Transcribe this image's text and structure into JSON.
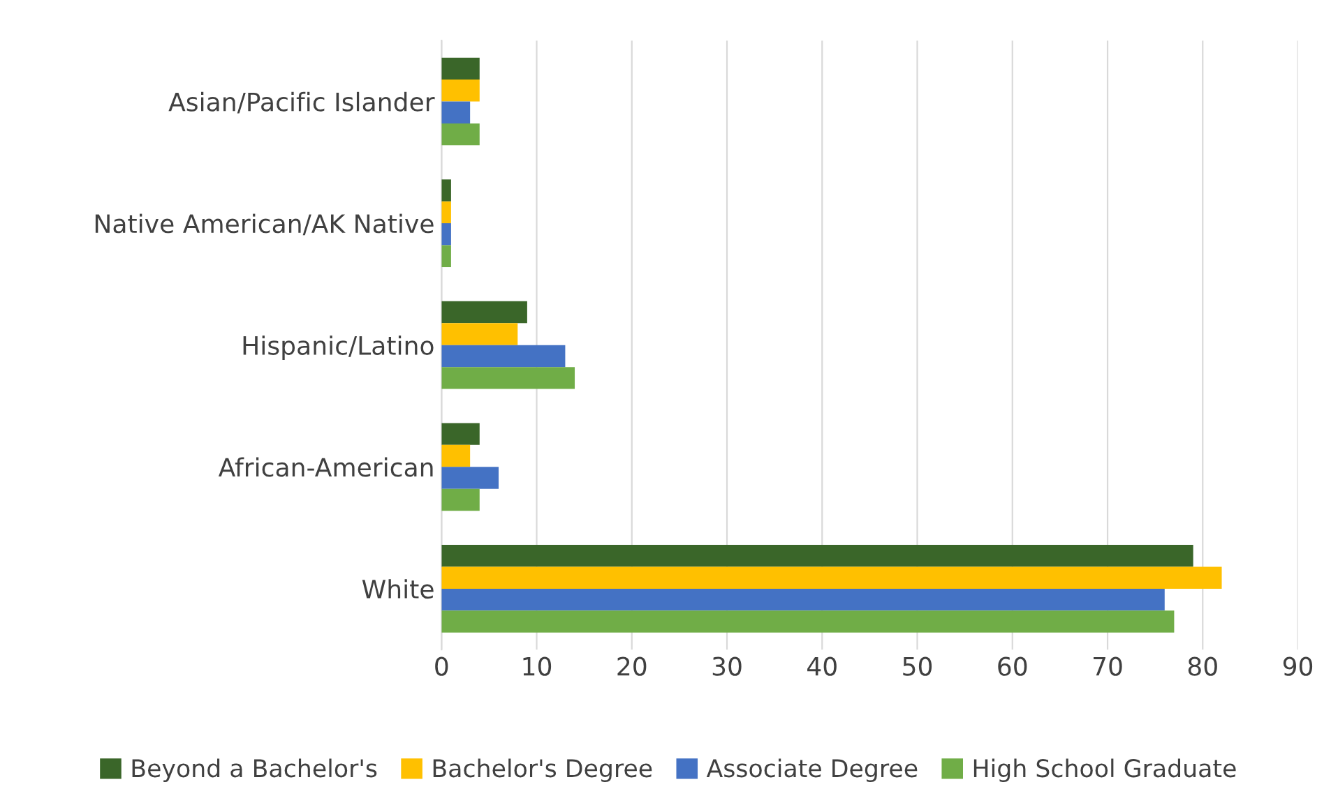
{
  "chart_data": {
    "type": "bar",
    "orientation": "horizontal",
    "categories": [
      "Asian/Pacific Islander",
      "Native American/AK Native",
      "Hispanic/Latino",
      "African-American",
      "White"
    ],
    "series": [
      {
        "name": "Beyond a Bachelor's",
        "color": "#3a6629",
        "values": [
          4,
          1,
          9,
          4,
          79
        ]
      },
      {
        "name": "Bachelor's Degree",
        "color": "#ffc000",
        "values": [
          4,
          1,
          8,
          3,
          82
        ]
      },
      {
        "name": "Associate Degree",
        "color": "#4472c4",
        "values": [
          3,
          1,
          13,
          6,
          76
        ]
      },
      {
        "name": "High School Graduate",
        "color": "#70ad47",
        "values": [
          4,
          1,
          14,
          4,
          77
        ]
      }
    ],
    "xlim": [
      0,
      90
    ],
    "xticks": [
      0,
      10,
      20,
      30,
      40,
      50,
      60,
      70,
      80,
      90
    ],
    "grid": "x",
    "legend": "bottom"
  }
}
